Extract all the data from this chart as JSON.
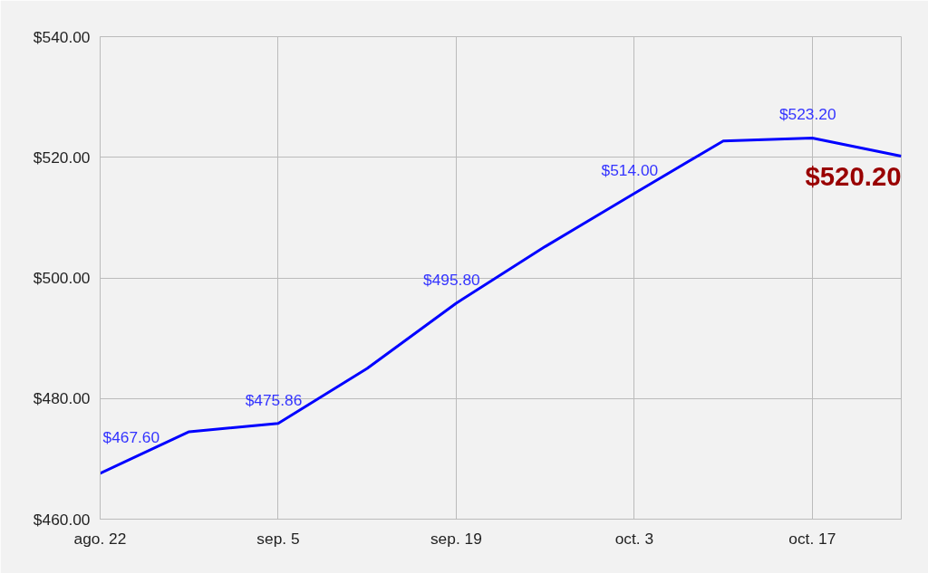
{
  "chart_data": {
    "type": "line",
    "categories": [
      "ago. 22",
      null,
      "sep. 5",
      null,
      "sep. 19",
      null,
      "oct. 3",
      null,
      "oct. 17",
      null
    ],
    "series": [
      {
        "color": "#0000ff",
        "values": [
          467.6,
          474.5,
          475.86,
          485.0,
          495.8,
          505.2,
          514.0,
          522.7,
          523.2,
          520.2
        ],
        "value_labels": [
          "$467.60",
          null,
          "$475.86",
          null,
          "$495.80",
          null,
          "$514.00",
          null,
          "$523.20",
          "$520.20"
        ]
      }
    ],
    "ylim": [
      460,
      540
    ],
    "yticks": [
      {
        "value": 460,
        "label": "$460.00"
      },
      {
        "value": 480,
        "label": "$480.00"
      },
      {
        "value": 500,
        "label": "$500.00"
      },
      {
        "value": 520,
        "label": "$520.00"
      },
      {
        "value": 540,
        "label": "$540.00"
      }
    ],
    "grid": true,
    "marker": "none",
    "line_style": "solid"
  }
}
